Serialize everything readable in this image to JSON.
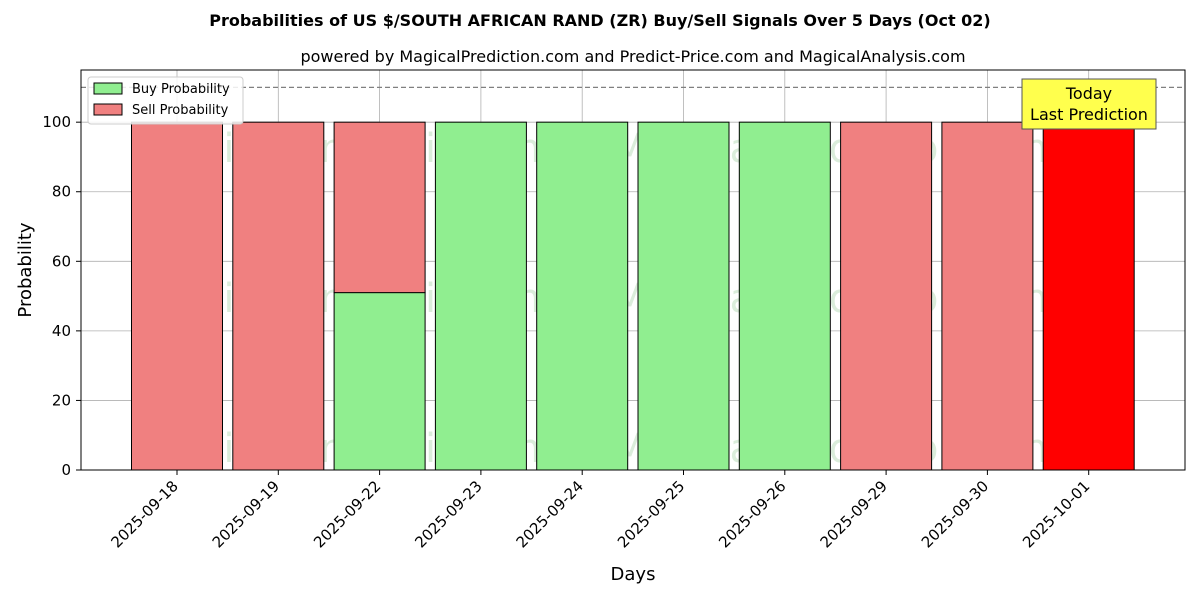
{
  "chart_data": {
    "type": "bar",
    "title": "Probabilities of US $/SOUTH AFRICAN RAND (ZR) Buy/Sell Signals Over 5 Days (Oct 02)",
    "subtitle": "powered by MagicalPrediction.com and Predict-Price.com and MagicalAnalysis.com",
    "xlabel": "Days",
    "ylabel": "Probability",
    "ylim": [
      0,
      115
    ],
    "yticks": [
      0,
      20,
      40,
      60,
      80,
      100
    ],
    "grid": true,
    "legend_position": "top-left",
    "categories": [
      "2025-09-18",
      "2025-09-19",
      "2025-09-22",
      "2025-09-23",
      "2025-09-24",
      "2025-09-25",
      "2025-09-26",
      "2025-09-29",
      "2025-09-30",
      "2025-10-01"
    ],
    "series": [
      {
        "name": "Buy Probability",
        "color": "#90ee90",
        "values": [
          0,
          0,
          51,
          100,
          100,
          100,
          100,
          0,
          0,
          0
        ]
      },
      {
        "name": "Sell Probability",
        "color": "#f08080",
        "values": [
          100,
          100,
          49,
          0,
          0,
          0,
          0,
          100,
          100,
          100
        ]
      }
    ],
    "highlight": {
      "category": "2025-10-01",
      "color": "#ff0000"
    },
    "reference_line": {
      "y": 110,
      "style": "dashed",
      "color": "#808080"
    },
    "annotation": {
      "lines": [
        "Today",
        "Last Prediction"
      ],
      "background": "#ffff4d"
    },
    "watermarks": [
      "MagicalAnalysis.com",
      "MagicalPrediction.com"
    ]
  }
}
